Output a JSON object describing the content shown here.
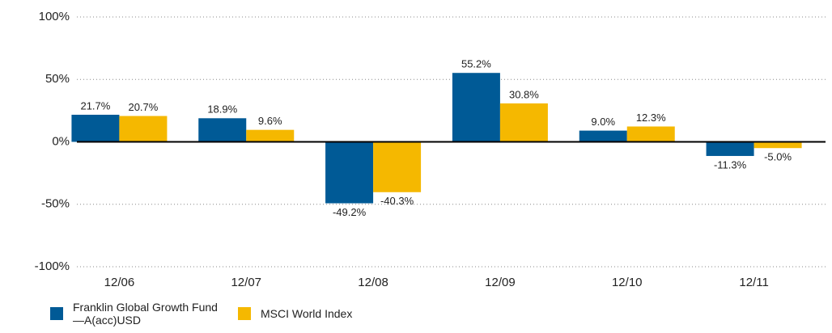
{
  "chart_data": {
    "type": "bar",
    "categories": [
      "12/06",
      "12/07",
      "12/08",
      "12/09",
      "12/10",
      "12/11"
    ],
    "series": [
      {
        "name": "Franklin Global Growth Fund—A(acc)USD",
        "color": "#005a96",
        "values": [
          21.7,
          18.9,
          -49.2,
          55.2,
          9.0,
          -11.3
        ],
        "value_labels": [
          "21.7%",
          "18.9%",
          "-49.2%",
          "55.2%",
          "9.0%",
          "-11.3%"
        ]
      },
      {
        "name": "MSCI World Index",
        "color": "#f5b800",
        "values": [
          20.7,
          9.6,
          -40.3,
          30.8,
          12.3,
          -5.0
        ],
        "value_labels": [
          "20.7%",
          "9.6%",
          "-40.3%",
          "30.8%",
          "12.3%",
          "-5.0%"
        ]
      }
    ],
    "ylim": [
      -100,
      100
    ],
    "yticks": [
      {
        "value": 100,
        "label": "100%"
      },
      {
        "value": 50,
        "label": "50%"
      },
      {
        "value": 0,
        "label": "0%"
      },
      {
        "value": -50,
        "label": "-50%"
      },
      {
        "value": -100,
        "label": "-100%"
      }
    ],
    "grid": true
  }
}
